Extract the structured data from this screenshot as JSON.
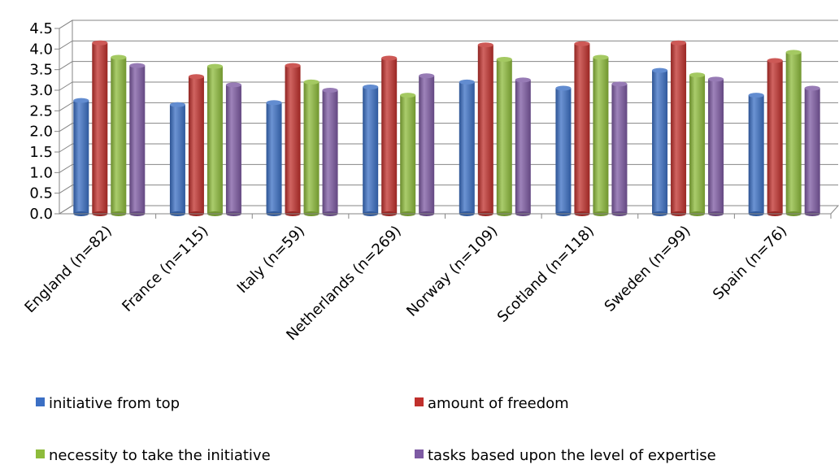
{
  "chart_data": {
    "type": "bar",
    "categories": [
      "England (n=82)",
      "France (n=115)",
      "Italy (n=59)",
      "Netherlands (n=269)",
      "Norway (n=109)",
      "Scotland (n=118)",
      "Sweden (n=99)",
      "Spain (n=76)"
    ],
    "series": [
      {
        "name": "initiative from top",
        "color": "#3b6fc4",
        "values": [
          2.75,
          2.65,
          2.7,
          3.08,
          3.2,
          3.05,
          3.48,
          2.88
        ]
      },
      {
        "name": "amount of freedom",
        "color": "#c0302c",
        "values": [
          4.15,
          3.33,
          3.6,
          3.78,
          4.1,
          4.13,
          4.15,
          3.72
        ]
      },
      {
        "name": "necessity to take the initiative",
        "color": "#8dbb3b",
        "values": [
          3.8,
          3.58,
          3.2,
          2.88,
          3.75,
          3.8,
          3.37,
          3.92
        ]
      },
      {
        "name": "tasks based upon the level of expertise",
        "color": "#7d5aa3",
        "values": [
          3.6,
          3.13,
          3.0,
          3.35,
          3.25,
          3.15,
          3.27,
          3.05
        ]
      }
    ],
    "yticks": [
      "0.0",
      "0.5",
      "1.0",
      "1.5",
      "2.0",
      "2.5",
      "3.0",
      "3.5",
      "4.0",
      "4.5"
    ],
    "ylim": [
      0,
      4.5
    ],
    "grid": true,
    "legend_position": "bottom"
  }
}
